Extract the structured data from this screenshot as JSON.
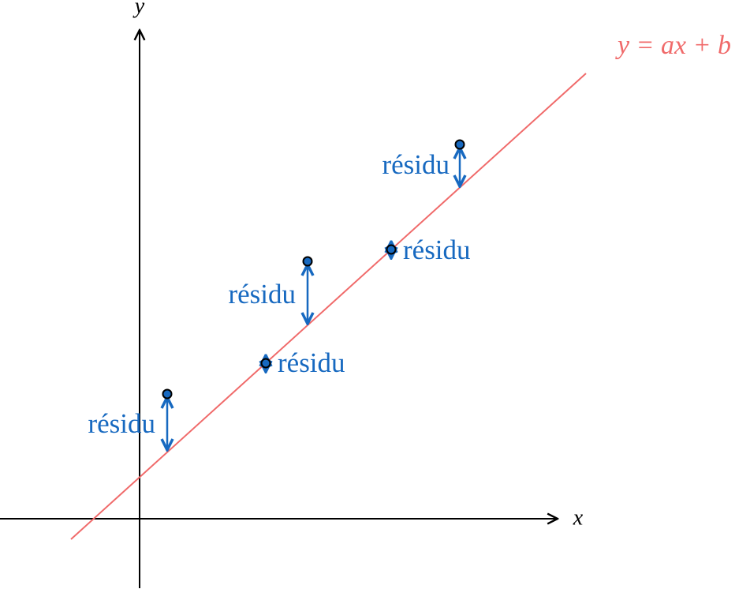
{
  "axes": {
    "x_label": "x",
    "y_label": "y"
  },
  "line": {
    "label": "y = ax + b"
  },
  "residuals": [
    {
      "label": "résidu"
    },
    {
      "label": "résidu"
    },
    {
      "label": "résidu"
    },
    {
      "label": "résidu"
    },
    {
      "label": "résidu"
    }
  ]
}
